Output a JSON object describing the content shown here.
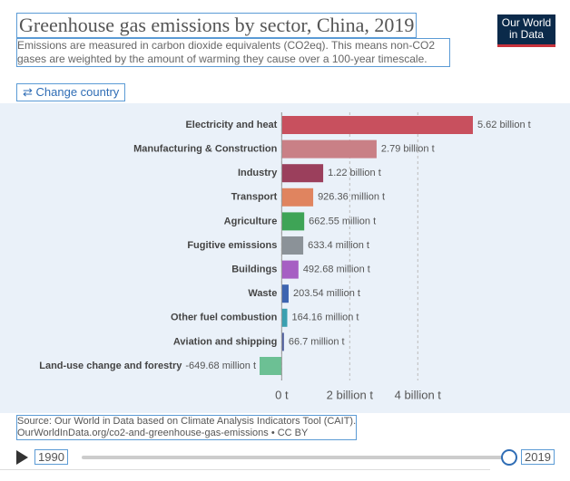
{
  "header": {
    "title": "Greenhouse gas emissions by sector, China, 2019",
    "subtitle": "Emissions are measured in carbon dioxide equivalents (CO2eq). This means non-CO2 gases are weighted by the amount of warming they cause over a 100-year timescale.",
    "logo": [
      "Our World",
      "in Data"
    ],
    "button": "Change country"
  },
  "chart_data": {
    "type": "bar",
    "orientation": "horizontal",
    "categories": [
      "Electricity and heat",
      "Manufacturing & Construction",
      "Industry",
      "Transport",
      "Agriculture",
      "Fugitive emissions",
      "Buildings",
      "Waste",
      "Other fuel combustion",
      "Aviation and shipping",
      "Land-use change and forestry"
    ],
    "values": [
      5620000000,
      2790000000,
      1220000000,
      926360000,
      662550000,
      633400000,
      492680000,
      203540000,
      164160000,
      66700000,
      -649680000
    ],
    "value_labels": [
      "5.62 billion t",
      "2.79 billion t",
      "1.22 billion t",
      "926.36 million t",
      "662.55 million t",
      "633.4 million t",
      "492.68 million t",
      "203.54 million t",
      "164.16 million t",
      "66.7 million t",
      "-649.68 million t"
    ],
    "colors": [
      "#c8505e",
      "#c98086",
      "#9b3f5c",
      "#e0845f",
      "#3ea456",
      "#8b9298",
      "#a65fc3",
      "#3d64b0",
      "#3ba0b0",
      "#52619f",
      "#6cc094"
    ],
    "xlim": [
      -649680000,
      5620000000
    ],
    "xticks": [
      {
        "value": 0,
        "label": "0 t"
      },
      {
        "value": 2000000000,
        "label": "2 billion t"
      },
      {
        "value": 4000000000,
        "label": "4 billion t"
      }
    ],
    "grid": true
  },
  "footer": {
    "source": "Source: Our World in Data based on Climate Analysis Indicators Tool (CAIT).",
    "url": "OurWorldInData.org/co2-and-greenhouse-gas-emissions • CC BY"
  },
  "timeline": {
    "start": "1990",
    "end": "2019"
  }
}
